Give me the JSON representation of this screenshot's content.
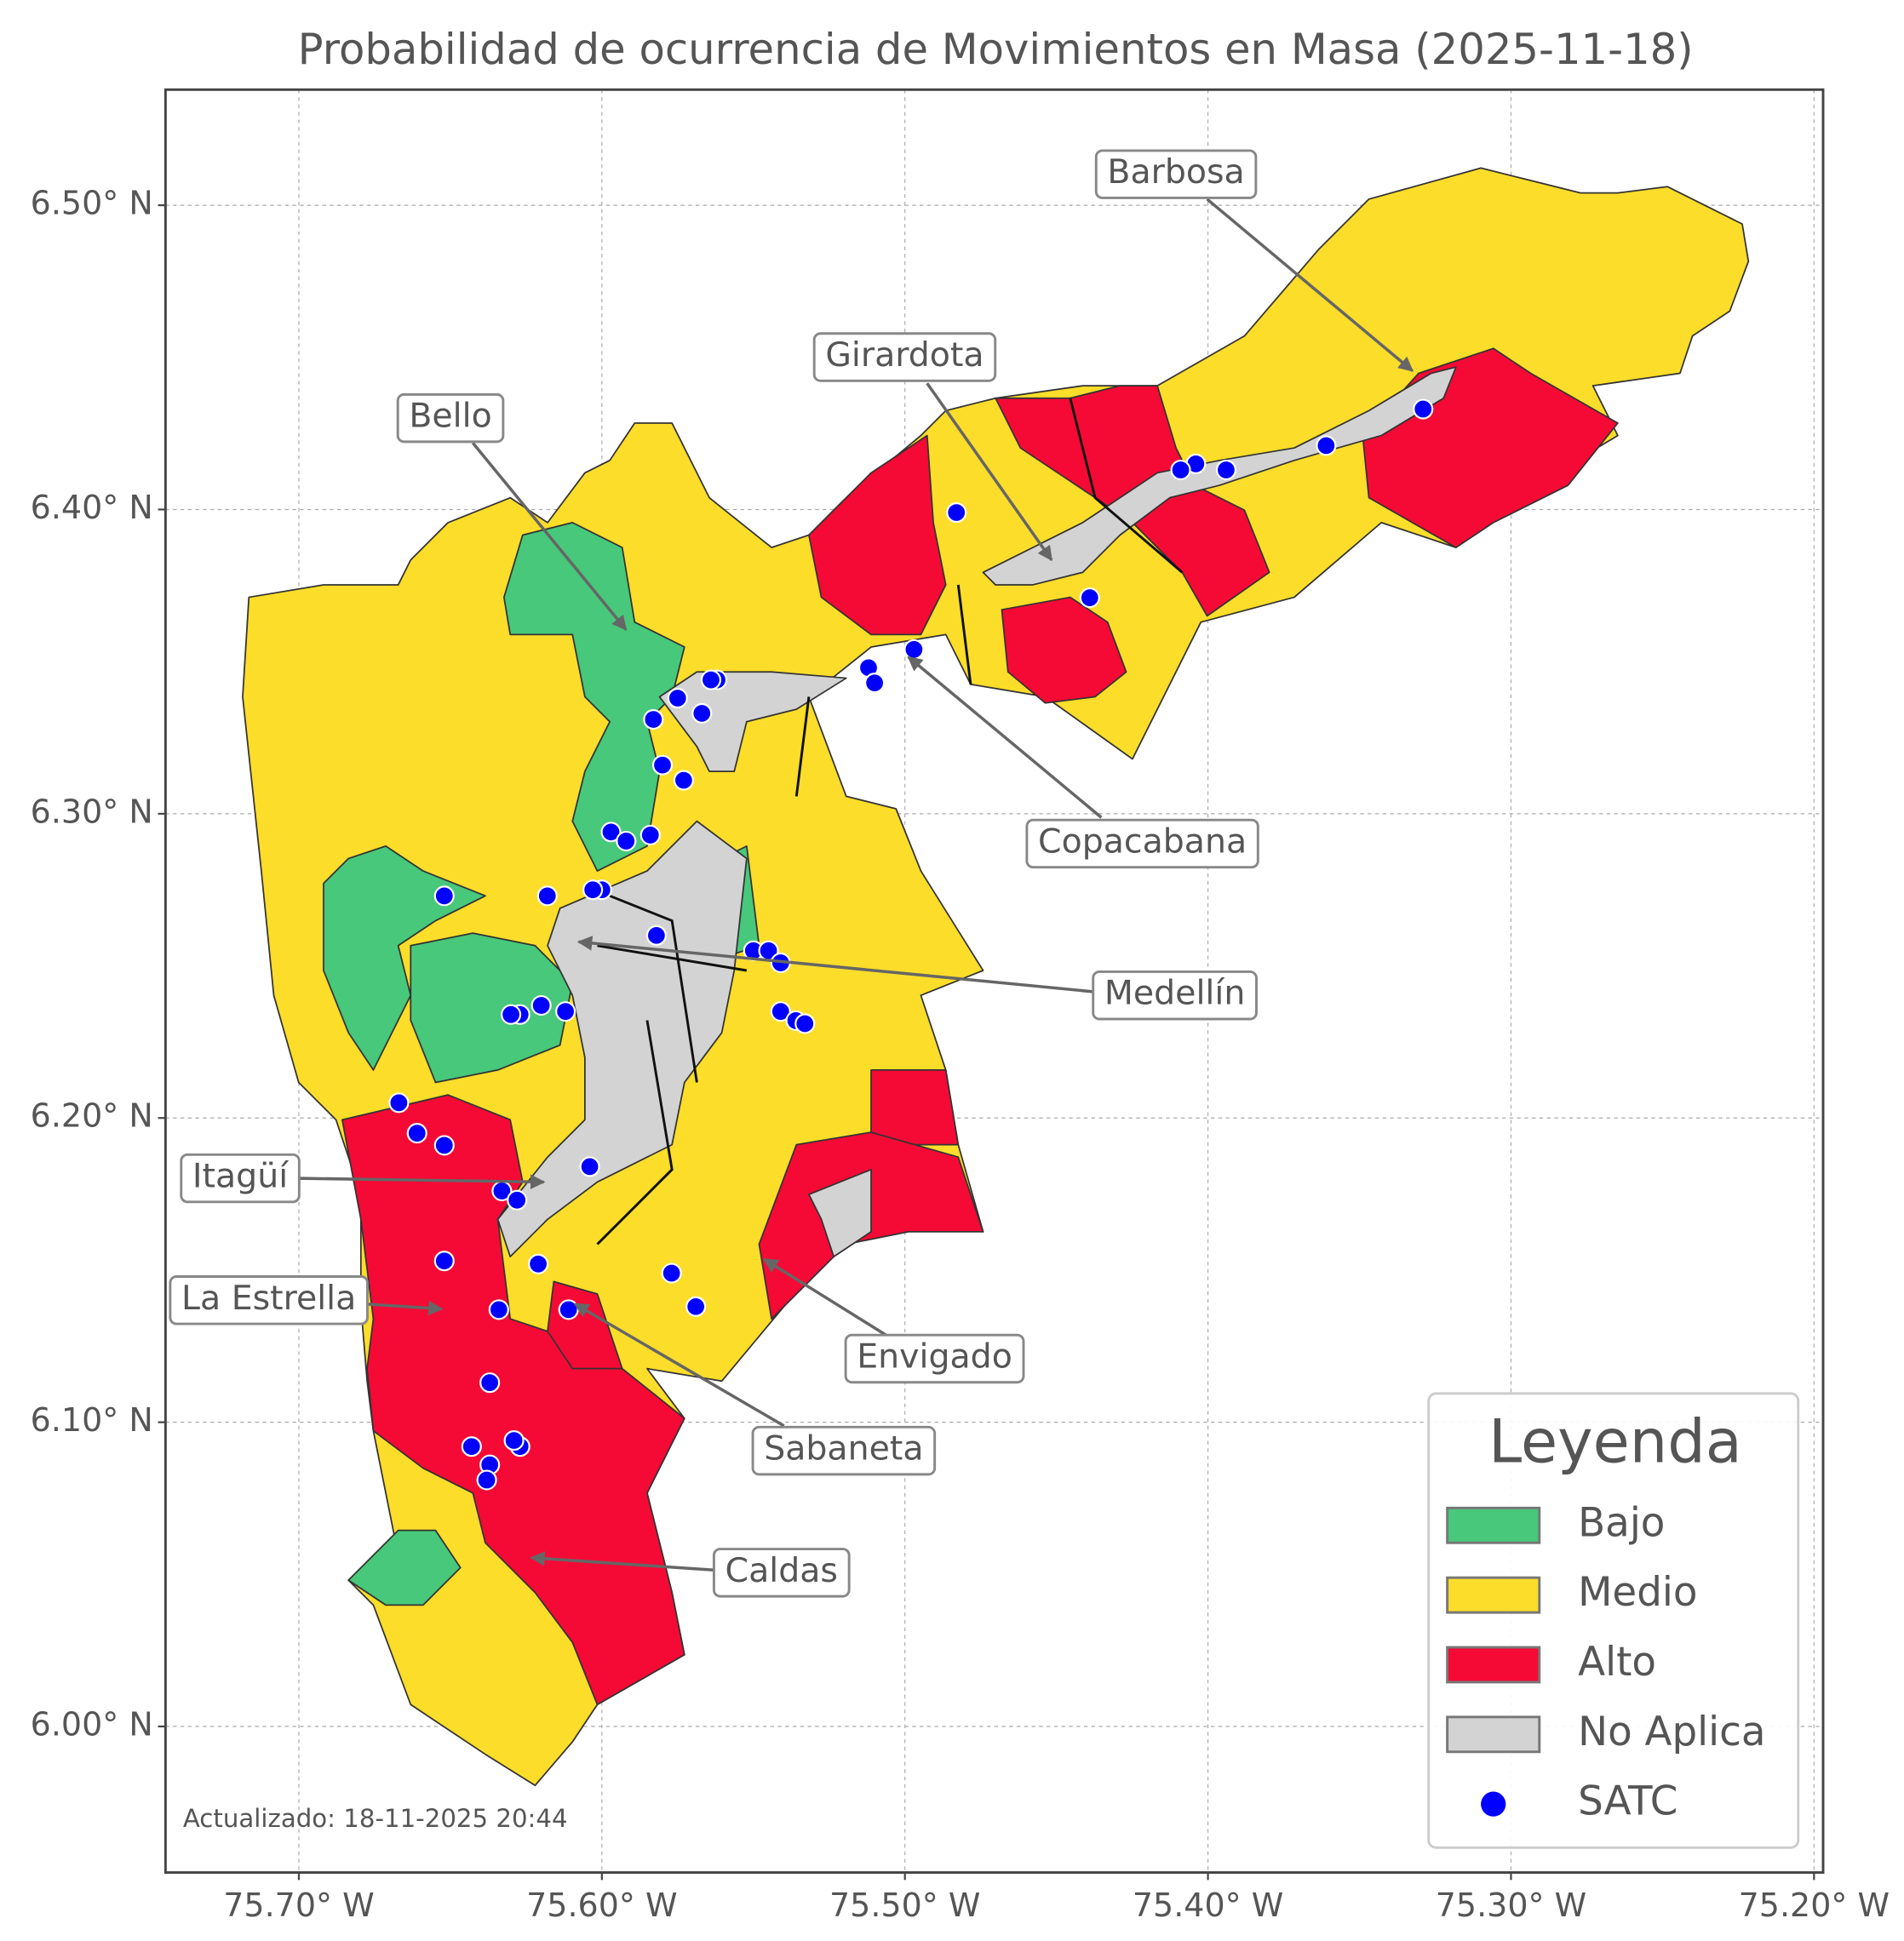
{
  "title": "Probabilidad de ocurrencia de Movimientos en Masa (2025-11-18)",
  "map": {
    "xlim": [
      -75.744,
      -75.197
    ],
    "ylim": [
      5.952,
      6.538
    ],
    "grid": true,
    "xticks": [
      {
        "value": -75.7,
        "label": "75.70° W"
      },
      {
        "value": -75.6,
        "label": "75.60° W"
      },
      {
        "value": -75.5,
        "label": "75.50° W"
      },
      {
        "value": -75.4,
        "label": "75.40° W"
      },
      {
        "value": -75.3,
        "label": "75.30° W"
      },
      {
        "value": -75.2,
        "label": "75.20° W"
      }
    ],
    "yticks": [
      {
        "value": 6.0,
        "label": "6.00° N"
      },
      {
        "value": 6.1,
        "label": "6.10° N"
      },
      {
        "value": 6.2,
        "label": "6.20° N"
      },
      {
        "value": 6.3,
        "label": "6.30° N"
      },
      {
        "value": 6.4,
        "label": "6.40° N"
      },
      {
        "value": 6.5,
        "label": "6.50° N"
      }
    ]
  },
  "annotations": [
    "Barbosa",
    "Girardota",
    "Bello",
    "Copacabana",
    "Medellín",
    "Itagüí",
    "La Estrella",
    "Envigado",
    "Sabaneta",
    "Caldas"
  ],
  "legend": {
    "title": "Leyenda",
    "entries": [
      {
        "label": "Bajo",
        "color": "#47c87a"
      },
      {
        "label": "Medio",
        "color": "#fbdd2a"
      },
      {
        "label": "Alto",
        "color": "#f50a35"
      },
      {
        "label": "No Aplica",
        "color": "#d3d3d3"
      }
    ]
  },
  "satc": {
    "name": "SATC",
    "color": "#0000ff",
    "lon": [
      -75.329,
      -75.361,
      -75.394,
      -75.404,
      -75.409,
      -75.483,
      -75.439,
      -75.497,
      -75.512,
      -75.51,
      -75.562,
      -75.564,
      -75.575,
      -75.583,
      -75.567,
      -75.58,
      -75.573,
      -75.597,
      -75.592,
      -75.584,
      -75.6,
      -75.603,
      -75.618,
      -75.652,
      -75.582,
      -75.55,
      -75.545,
      -75.541,
      -75.541,
      -75.536,
      -75.533,
      -75.612,
      -75.62,
      -75.627,
      -75.63,
      -75.667,
      -75.661,
      -75.652,
      -75.604,
      -75.633,
      -75.628,
      -75.652,
      -75.621,
      -75.577,
      -75.569,
      -75.634,
      -75.611,
      -75.637,
      -75.643,
      -75.627,
      -75.629,
      -75.637,
      -75.638
    ],
    "lat": [
      6.433,
      6.421,
      6.413,
      6.415,
      6.413,
      6.399,
      6.371,
      6.354,
      6.348,
      6.343,
      6.344,
      6.344,
      6.338,
      6.331,
      6.333,
      6.316,
      6.311,
      6.294,
      6.291,
      6.293,
      6.275,
      6.275,
      6.273,
      6.273,
      6.26,
      6.255,
      6.255,
      6.251,
      6.235,
      6.232,
      6.231,
      6.235,
      6.237,
      6.234,
      6.234,
      6.205,
      6.195,
      6.191,
      6.184,
      6.176,
      6.173,
      6.153,
      6.152,
      6.149,
      6.138,
      6.137,
      6.137,
      6.113,
      6.092,
      6.092,
      6.094,
      6.086,
      6.081
    ]
  },
  "updated": "Actualizado: 18-11-2025 20:44"
}
